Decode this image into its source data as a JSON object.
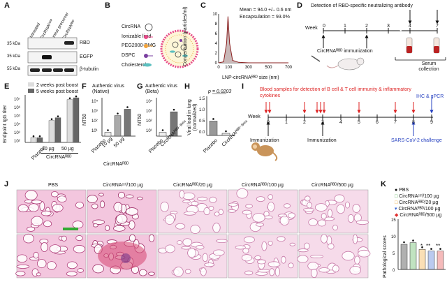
{
  "figure": {
    "panel_labels": [
      "A",
      "B",
      "C",
      "D",
      "E",
      "F",
      "G",
      "H",
      "I",
      "J",
      "K"
    ],
    "panelA": {
      "lanes": [
        "Untreated",
        "CircRNAᴱᴳᶠᴾ",
        "Linear precursor",
        "CircRNAᴿᴮᴰ"
      ],
      "kda": [
        "35 kDa",
        "35 kDa",
        "55 kDa"
      ],
      "bands": [
        "RBD",
        "EGFP",
        "β-tubulin"
      ]
    },
    "panelB": {
      "items": [
        "CircRNA",
        "Ionizable lipid",
        "PEG2000-DMG",
        "DSPC",
        "Cholesterol"
      ],
      "colors": [
        "#ffffff",
        "#e84a8a",
        "#f2a33a",
        "#7a3fa0",
        "#5cc0c0"
      ]
    },
    "panelC": {
      "mean_text": "Mean = 94.0 +/– 0.6 nm",
      "encap_text": "Encapsulation = 93.0%",
      "ylabel": "Concentration (particles/ml)",
      "xlabel": "LNP-circRNAᴿᴮᴰ size (nm)",
      "xticks": [
        "0",
        "100",
        "300",
        "500",
        "700"
      ],
      "yticks": [
        "0",
        "2",
        "4",
        "6",
        "8",
        "10"
      ]
    },
    "panelD": {
      "title": "Detection of RBD-specific neutralizing antibody",
      "week_label": "Week",
      "weeks": [
        "0",
        "1",
        "2",
        "3",
        "4",
        "7"
      ],
      "immun_label": "CircRNAᴿᴮᴰ immunization",
      "serum_label": "Serum collection"
    },
    "panelE": {
      "legend": [
        "2 weeks post boost",
        "5 weeks post boost"
      ],
      "ylabel": "Endpoint IgG titer",
      "yticks": [
        "10⁷",
        "10⁶",
        "10⁵",
        "10⁴",
        "10³",
        "10²"
      ],
      "groups": [
        "Placebo",
        "10 µg",
        "50 µg"
      ],
      "group_label": "CircRNAᴿᴮᴰ"
    },
    "panelF": {
      "title": "Authentic virus (Native)",
      "ylabel": "NT50",
      "yticks": [
        "10⁴",
        "10³",
        "10²",
        "10¹"
      ],
      "groups": [
        "Placebo",
        "10 µg",
        "50 µg"
      ],
      "group_label": "CircRNAᴿᴮᴰ"
    },
    "panelG": {
      "title": "Authentic virus (Beta)",
      "ylabel": "NT50",
      "yticks": [
        "10⁴",
        "10³",
        "10²",
        "10¹"
      ],
      "groups": [
        "Placebo",
        "CircRNAᴿᴮᴰ⁻ᴮᵉᵗᵃ"
      ]
    },
    "panelH": {
      "pvalue": "p = 0.0203",
      "ylabel": "Viral load in lung (normalized)",
      "yticks": [
        "1.5",
        "1.0",
        "0.5",
        "0.0"
      ],
      "groups": [
        "Placebo",
        "CircRNAᴿᴮᴰ⁻ᴮᵉᵗᵃ"
      ]
    },
    "panelI": {
      "blood_text": "Blood samples for detection of B cell & T cell immunity & inflammatory cytokines",
      "week_label": "Week",
      "weeks": [
        "0",
        "1",
        "2",
        "3",
        "4",
        "5",
        "6",
        "7",
        "8",
        "9"
      ],
      "immun1": "Immunization",
      "immun2": "Immunization",
      "ihc": "IHC & qPCR",
      "challenge": "SARS-CoV-2 challenge"
    },
    "panelJ": {
      "columns": [
        "PBS",
        "CircRNAᶜᵗʳˡ/100 µg",
        "CircRNAᴿᴮᴰ/20 µg",
        "CircRNAᴿᴮᴰ/100 µg",
        "CircRNAᴿᴮᴰ/500 µg"
      ]
    },
    "panelK": {
      "legend": [
        "PBS",
        "CircRNAᶜᵗʳˡ/100 µg",
        "CircRNAᴿᴮᴰ/20 µg",
        "CircRNAᴿᴮᴰ/100 µg",
        "CircRNAᴿᴮᴰ/500 µg"
      ],
      "colors": [
        "#111111",
        "#44aa44",
        "#f0a020",
        "#3060d0",
        "#e03030"
      ],
      "ylabel": "Pathological scores",
      "yticks": [
        "0",
        "5",
        "10",
        "15"
      ],
      "stars": [
        "*",
        "**",
        "**"
      ]
    }
  },
  "chart_data": [
    {
      "type": "line",
      "title": "",
      "xlabel": "LNP-circRNA RBD size (nm)",
      "ylabel": "Concentration (particles/ml)",
      "x": [
        0,
        50,
        80,
        94,
        110,
        140,
        200,
        300,
        500,
        700
      ],
      "values": [
        0,
        0.2,
        4,
        9.5,
        4,
        0.5,
        0.1,
        0,
        0,
        0
      ],
      "xlim": [
        0,
        700
      ],
      "ylim": [
        0,
        10
      ]
    },
    {
      "type": "bar",
      "title": "",
      "ylabel": "Endpoint IgG titer",
      "categories": [
        "Placebo",
        "10 µg",
        "50 µg"
      ],
      "series": [
        {
          "name": "2 weeks post boost",
          "values": [
            2.5,
            4.3,
            6.5
          ]
        },
        {
          "name": "5 weeks post boost",
          "values": [
            2.5,
            4.6,
            6.7
          ]
        }
      ],
      "ylim": [
        2,
        7
      ]
    },
    {
      "type": "bar",
      "title": "Authentic virus (Native)",
      "ylabel": "NT50",
      "categories": [
        "Placebo",
        "10 µg",
        "50 µg"
      ],
      "values": [
        1.3,
        2.6,
        3.1
      ],
      "ylim": [
        1,
        4
      ]
    },
    {
      "type": "bar",
      "title": "Authentic virus (Beta)",
      "ylabel": "NT50",
      "categories": [
        "Placebo",
        "CircRNA RBD-Beta"
      ],
      "values": [
        1.3,
        2.9
      ],
      "ylim": [
        1,
        4
      ]
    },
    {
      "type": "bar",
      "title": "",
      "ylabel": "Viral load in lung (normalized)",
      "categories": [
        "Placebo",
        "CircRNA RBD-Beta"
      ],
      "values": [
        0.55,
        0.08
      ],
      "ylim": [
        0,
        1.5
      ]
    },
    {
      "type": "bar",
      "title": "",
      "ylabel": "Pathological scores",
      "categories": [
        "PBS",
        "CircRNA Ctrl/100 µg",
        "CircRNA RBD/20 µg",
        "CircRNA RBD/100 µg",
        "CircRNA RBD/500 µg"
      ],
      "values": [
        7.5,
        8,
        6,
        5.5,
        5.5
      ],
      "ylim": [
        0,
        15
      ]
    }
  ]
}
